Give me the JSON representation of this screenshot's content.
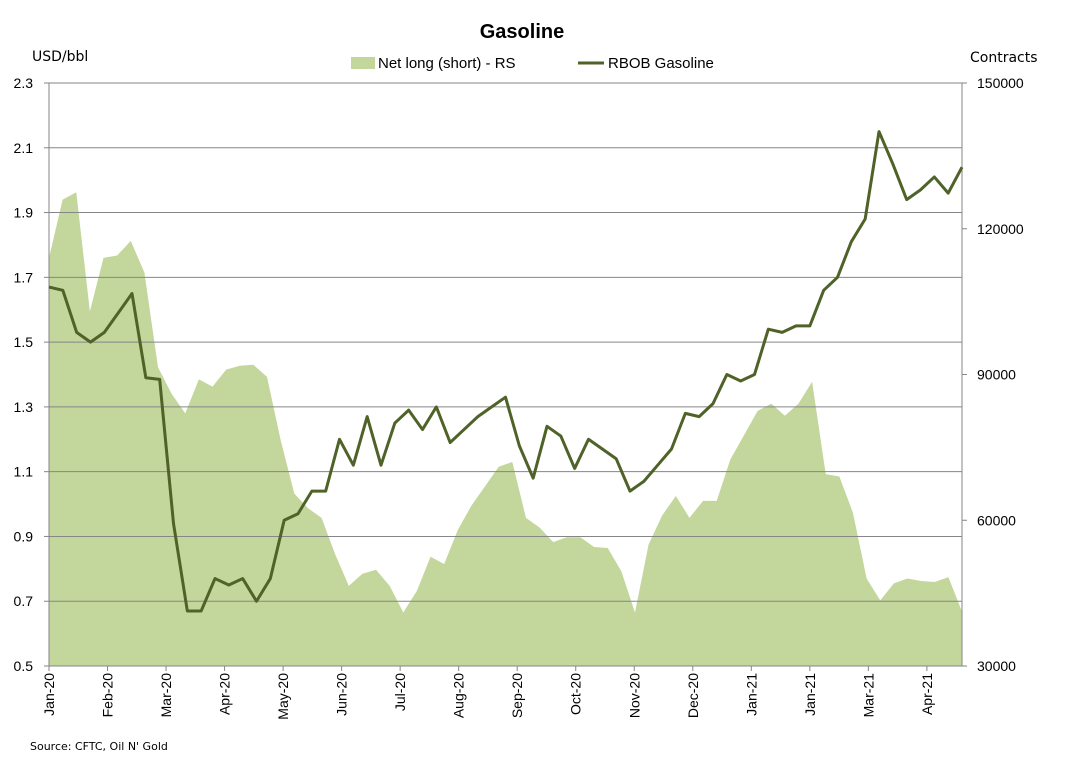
{
  "chart_data": {
    "type": "area+line",
    "title": "Gasoline",
    "left_axis_label": "USD/bbl",
    "right_axis_label": "Contracts",
    "source": "Source: CFTC, Oil N' Gold",
    "left_ylim": [
      0.5,
      2.3
    ],
    "right_ylim": [
      30000,
      150000
    ],
    "left_ticks": [
      "0.5",
      "0.7",
      "0.9",
      "1.1",
      "1.3",
      "1.5",
      "1.7",
      "1.9",
      "2.1",
      "2.3"
    ],
    "right_ticks": [
      "30000",
      "60000",
      "90000",
      "120000",
      "150000"
    ],
    "x_tick_labels": [
      "Jan-20",
      "Feb-20",
      "Mar-20",
      "Apr-20",
      "May-20",
      "Jun-20",
      "Jul-20",
      "Aug-20",
      "Sep-20",
      "Oct-20",
      "Nov-20",
      "Dec-20",
      "Jan-21",
      "Jan-21",
      "Mar-21",
      "Apr-21"
    ],
    "x_tick_weeks": [
      0,
      5,
      10,
      15,
      20,
      25,
      30,
      35,
      40,
      45,
      50,
      55,
      60,
      65,
      70,
      75
    ],
    "x_max_week": 78,
    "grid": "horizontal",
    "legend_position": "top-center",
    "series": [
      {
        "name": "Net long (short) - RS",
        "type": "area",
        "axis": "right",
        "color": "#c3d69b",
        "values": [
          114000,
          126000,
          127500,
          103000,
          114000,
          114500,
          117500,
          111000,
          91500,
          86000,
          82000,
          89000,
          87500,
          91000,
          91800,
          92000,
          89500,
          76500,
          65500,
          62500,
          60500,
          53000,
          46500,
          49000,
          49800,
          46500,
          41000,
          45500,
          52500,
          51000,
          58000,
          63000,
          67000,
          71000,
          72000,
          60500,
          58500,
          55500,
          56500,
          56500,
          54500,
          54300,
          49500,
          41000,
          55000,
          61000,
          65000,
          60500,
          64000,
          64000,
          72500,
          77500,
          82500,
          84000,
          81500,
          84000,
          88500,
          69500,
          69000,
          61500,
          48000,
          43500,
          47000,
          48000,
          47500,
          47300,
          48300,
          41200
        ]
      },
      {
        "name": "RBOB Gasoline",
        "type": "line",
        "axis": "left",
        "color": "#4f6228",
        "values": [
          1.67,
          1.66,
          1.53,
          1.5,
          1.53,
          1.59,
          1.65,
          1.39,
          1.385,
          0.94,
          0.67,
          0.67,
          0.77,
          0.75,
          0.77,
          0.7,
          0.77,
          0.95,
          0.97,
          1.04,
          1.04,
          1.2,
          1.12,
          1.27,
          1.12,
          1.25,
          1.29,
          1.23,
          1.3,
          1.19,
          1.23,
          1.27,
          1.3,
          1.33,
          1.18,
          1.08,
          1.24,
          1.21,
          1.11,
          1.2,
          1.17,
          1.14,
          1.04,
          1.07,
          1.12,
          1.17,
          1.28,
          1.27,
          1.31,
          1.4,
          1.38,
          1.4,
          1.54,
          1.53,
          1.55,
          1.55,
          1.66,
          1.7,
          1.81,
          1.88,
          2.15,
          2.05,
          1.94,
          1.97,
          2.01,
          1.96,
          2.04
        ]
      }
    ]
  }
}
